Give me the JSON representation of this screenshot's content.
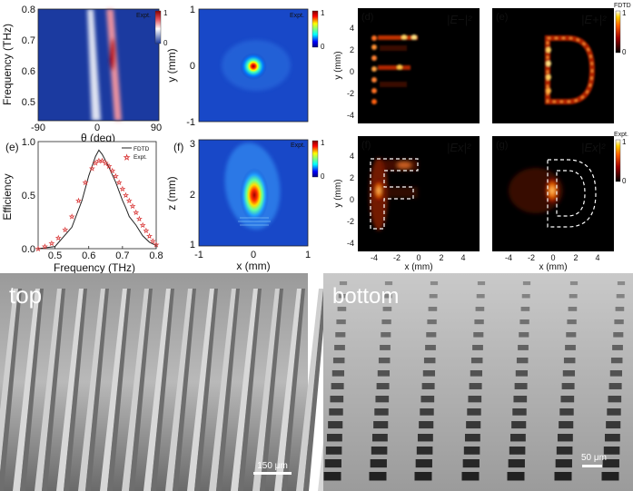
{
  "panels": {
    "a": {
      "legend": "Expt.",
      "xlabel": "θ (deg)",
      "ylabel": "Frequency (THz)",
      "xticks": [
        "-90",
        "0",
        "90"
      ],
      "yticks": [
        "0.8",
        "0.7",
        "0.6",
        "0.5"
      ],
      "colorbar": [
        "1",
        "0"
      ]
    },
    "b": {
      "legend": "Expt.",
      "ylabel": "y (mm)",
      "yticks": [
        "1",
        "0",
        "-1"
      ],
      "colorbar": [
        "1",
        "0"
      ]
    },
    "c": {
      "letter": "(f)",
      "legend": "Expt.",
      "xlabel": "x (mm)",
      "ylabel": "z (mm)",
      "xticks": [
        "-1",
        "0",
        "1"
      ],
      "yticks": [
        "3",
        "2",
        "1"
      ],
      "colorbar": [
        "1",
        "0"
      ]
    },
    "e": {
      "letter": "(e)",
      "xlabel": "Frequency (THz)",
      "ylabel": "Efficiency",
      "xticks": [
        "0.5",
        "0.6",
        "0.7",
        "0.8"
      ],
      "yticks": [
        "1.0",
        "0.5",
        "0.0"
      ],
      "legend": [
        "FDTD",
        "Expt."
      ]
    },
    "d": {
      "letter": "(d)",
      "field": "|E−|²"
    },
    "e2": {
      "letter": "(e)",
      "field": "|E+|²",
      "colorbar_title": "FDTD",
      "colorbar": [
        "1",
        "0"
      ]
    },
    "f2": {
      "letter": "(f)",
      "field": "|Ex|²"
    },
    "g": {
      "letter": "(g)",
      "field": "|Ex|²",
      "colorbar_title": "Expt.",
      "colorbar": [
        "1",
        "0"
      ]
    },
    "maps": {
      "ylabel": "y (mm)",
      "xlabel": "x (mm)",
      "yticks": [
        "4",
        "2",
        "0",
        "-2",
        "-4"
      ],
      "xticks": [
        "-4",
        "-2",
        "0",
        "2",
        "4"
      ]
    }
  },
  "sem": {
    "top": {
      "label": "top",
      "scalebar": "150 μm"
    },
    "bottom": {
      "label": "bottom",
      "scalebar": "50 μm"
    }
  },
  "chart_data": {
    "type": "line",
    "xlabel": "Frequency (THz)",
    "ylabel": "Efficiency",
    "xlim": [
      0.45,
      0.8
    ],
    "ylim": [
      0,
      1.0
    ],
    "series": [
      {
        "name": "FDTD",
        "x": [
          0.45,
          0.5,
          0.55,
          0.58,
          0.6,
          0.62,
          0.63,
          0.64,
          0.66,
          0.68,
          0.7,
          0.71,
          0.72,
          0.74,
          0.76,
          0.78,
          0.8
        ],
        "y": [
          0.0,
          0.02,
          0.2,
          0.45,
          0.68,
          0.86,
          0.92,
          0.88,
          0.76,
          0.62,
          0.45,
          0.38,
          0.3,
          0.22,
          0.12,
          0.06,
          0.03
        ]
      },
      {
        "name": "Expt.",
        "x": [
          0.45,
          0.47,
          0.49,
          0.51,
          0.53,
          0.55,
          0.57,
          0.59,
          0.61,
          0.62,
          0.63,
          0.64,
          0.65,
          0.66,
          0.67,
          0.68,
          0.69,
          0.7,
          0.71,
          0.72,
          0.73,
          0.74,
          0.75,
          0.76,
          0.77,
          0.78,
          0.79,
          0.8
        ],
        "y": [
          0.0,
          0.02,
          0.05,
          0.1,
          0.18,
          0.3,
          0.45,
          0.62,
          0.75,
          0.8,
          0.82,
          0.82,
          0.8,
          0.77,
          0.73,
          0.68,
          0.62,
          0.56,
          0.5,
          0.45,
          0.4,
          0.34,
          0.28,
          0.22,
          0.17,
          0.12,
          0.07,
          0.04
        ]
      }
    ]
  }
}
